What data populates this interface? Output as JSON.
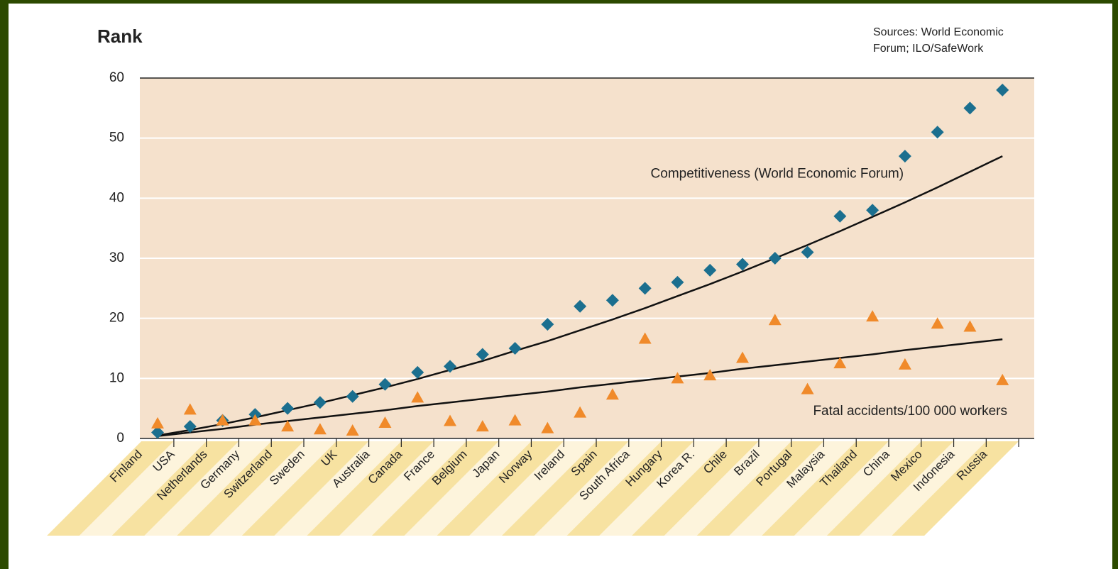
{
  "chart_data": {
    "type": "scatter",
    "y_label": "Rank",
    "source": [
      "Sources: World Economic",
      "Forum; ILO/SafeWork"
    ],
    "categories": [
      "Finland",
      "USA",
      "Netherlands",
      "Germany",
      "Switzerland",
      "Sweden",
      "UK",
      "Australia",
      "Canada",
      "France",
      "Belgium",
      "Japan",
      "Norway",
      "Ireland",
      "Spain",
      "South Africa",
      "Hungary",
      "Korea R.",
      "Chile",
      "Brazil",
      "Portugal",
      "Malaysia",
      "Thailand",
      "China",
      "Mexico",
      "Indonesia",
      "Russia"
    ],
    "series": [
      {
        "color": "#1b6f8f",
        "marker": "diamond",
        "values": [
          1,
          2,
          3,
          4,
          5,
          6,
          7,
          9,
          11,
          12,
          14,
          15,
          19,
          22,
          23,
          25,
          26,
          28,
          29,
          30,
          31,
          37,
          38,
          47,
          51,
          55,
          58
        ],
        "trend": [
          0.5,
          1.4,
          2.4,
          3.5,
          4.7,
          5.9,
          7.2,
          8.5,
          9.9,
          11.4,
          12.9,
          14.6,
          16.2,
          18.0,
          19.8,
          21.7,
          23.7,
          25.7,
          27.8,
          30.0,
          32.2,
          34.5,
          36.9,
          39.3,
          41.8,
          44.4,
          47.0
        ]
      },
      {
        "color": "#f08a2a",
        "marker": "triangle",
        "values": [
          2.5,
          4.8,
          3,
          3,
          2,
          1.5,
          1.3,
          2.6,
          6.8,
          2.9,
          2,
          3,
          1.7,
          4.3,
          7.3,
          16.6,
          10,
          10.5,
          13.4,
          19.7,
          8.2,
          12.5,
          20.3,
          12.3,
          19.1,
          18.6,
          9.7
        ],
        "trend": [
          0.4,
          1.0,
          1.6,
          2.3,
          2.9,
          3.5,
          4.1,
          4.7,
          5.4,
          6.0,
          6.6,
          7.2,
          7.8,
          8.5,
          9.1,
          9.7,
          10.3,
          10.9,
          11.6,
          12.2,
          12.8,
          13.4,
          14.0,
          14.7,
          15.3,
          15.9,
          16.5
        ]
      }
    ],
    "annotations": [
      {
        "text": "Competitiveness (World Economic Forum)",
        "category": 16,
        "value": 44
      },
      {
        "text": "Fatal accidents/100 000 workers",
        "category": 21,
        "value": 4.5
      }
    ],
    "ylim": [
      0,
      60
    ],
    "yticks": [
      0,
      10,
      20,
      30,
      40,
      50,
      60
    ],
    "grid": true,
    "plot_background": "#f5e1cc",
    "trend_color": "#111111"
  }
}
